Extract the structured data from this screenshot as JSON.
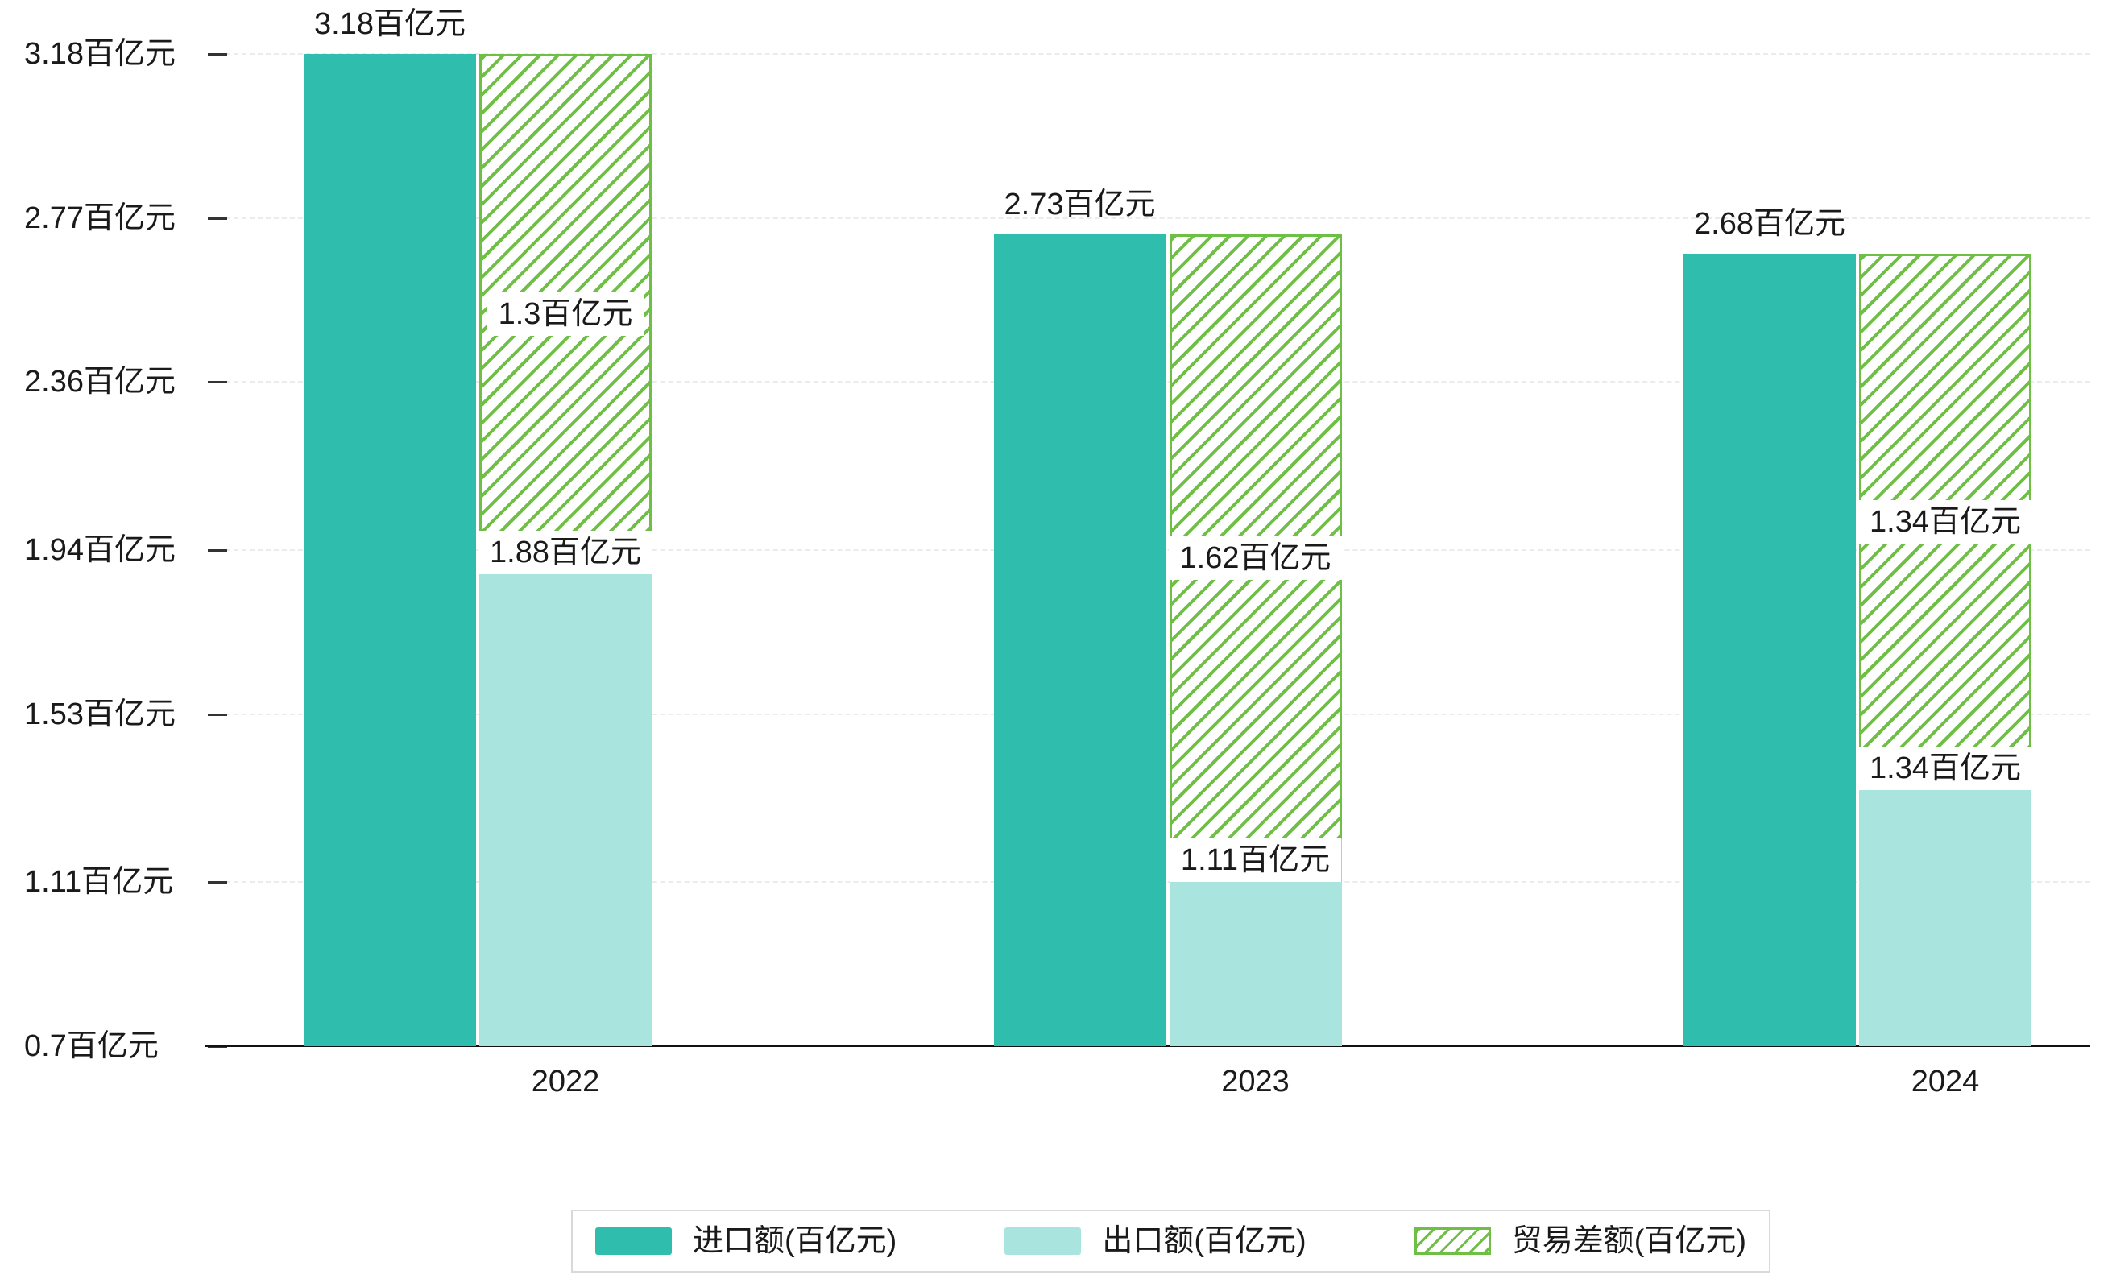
{
  "chart_data": {
    "type": "bar",
    "title": "",
    "categories": [
      "2022",
      "2023",
      "2024"
    ],
    "series": [
      {
        "name": "进口额(百亿元)",
        "role": "import",
        "style": "solid",
        "color": "#2fbeae",
        "values": [
          3.18,
          2.73,
          2.68
        ],
        "value_labels": [
          "3.18百亿元",
          "2.73百亿元",
          "2.68百亿元"
        ]
      },
      {
        "name": "出口额(百亿元)",
        "role": "export",
        "style": "solid",
        "color": "#a9e5de",
        "values": [
          1.88,
          1.11,
          1.34
        ],
        "value_labels": [
          "1.88百亿元",
          "1.11百亿元",
          "1.34百亿元"
        ]
      },
      {
        "name": "贸易差额(百亿元)",
        "role": "trade-difference",
        "style": "hatched-floating-from-export-to-import",
        "color": "#6fbe45",
        "values": [
          1.3,
          1.62,
          1.34
        ],
        "value_labels": [
          "1.3百亿元",
          "1.62百亿元",
          "1.34百亿元"
        ]
      }
    ],
    "unit": "百亿元",
    "ylim": [
      0.7,
      3.18
    ],
    "yticks": [
      0.7,
      1.11,
      1.53,
      1.94,
      2.36,
      2.77,
      3.18
    ],
    "ytick_labels": [
      "0.7百亿元",
      "1.11百亿元",
      "1.53百亿元",
      "1.94百亿元",
      "2.36百亿元",
      "2.77百亿元",
      "3.18百亿元"
    ],
    "grid": true,
    "legend_position": "bottom-center"
  },
  "colors": {
    "import": "#2fbeae",
    "export": "#a9e5de",
    "trade_diff": "#6fbe45",
    "axis": "#111111",
    "gridline": "#ebebeb",
    "text": "#1a1a1a",
    "legend_border": "#d9d9d9",
    "background": "#ffffff"
  }
}
